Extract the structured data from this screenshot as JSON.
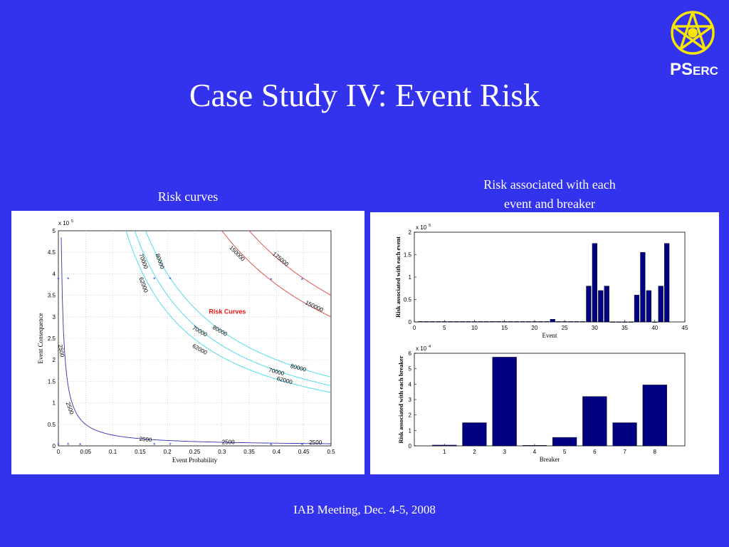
{
  "slide": {
    "title": "Case Study IV: Event Risk",
    "footer": "IAB Meeting, Dec. 4-5, 2008",
    "logo": {
      "icon": "star-wheel-icon",
      "text_big": "PS",
      "text_small": "ERC",
      "color": "#f6e600"
    },
    "background_color": "#3333ee",
    "left_caption": "Risk curves",
    "right_caption_line1": "Risk associated with each",
    "right_caption_line2": "event and breaker"
  },
  "chart_data": [
    {
      "type": "line",
      "title": "Risk Curves",
      "xlabel": "Event Probability",
      "ylabel": "Event Consequence",
      "y_exponent_label": "x 10",
      "y_exponent": "5",
      "xlim": [
        0,
        0.5
      ],
      "ylim": [
        0,
        5
      ],
      "grid": true,
      "xticks": [
        "0",
        "0.05",
        "0.1",
        "0.15",
        "0.2",
        "0.25",
        "0.3",
        "0.35",
        "0.4",
        "0.45",
        "0.5"
      ],
      "yticks": [
        "0",
        "0.5",
        "1",
        "1.5",
        "2",
        "2.5",
        "3",
        "3.5",
        "4",
        "4.5",
        "5"
      ],
      "series": [
        {
          "risk": 2500,
          "color": "#3030b0",
          "labels": [
            "2500",
            "2500",
            "2500",
            "2500",
            "2500"
          ]
        },
        {
          "risk": 62000,
          "color": "#40d8e8",
          "labels": [
            "62000",
            "62000",
            "62000"
          ]
        },
        {
          "risk": 70000,
          "color": "#40d8e8",
          "labels": [
            "70000",
            "70000",
            "70000"
          ]
        },
        {
          "risk": 80000,
          "color": "#40d8e8",
          "labels": [
            "80000",
            "80000",
            "80000"
          ]
        },
        {
          "risk": 150000,
          "color": "#e04040",
          "labels": [
            "150000",
            "150000"
          ]
        },
        {
          "risk": 175000,
          "color": "#e04040",
          "labels": [
            "175000"
          ]
        }
      ],
      "points": [
        {
          "x": 0.0,
          "y": 3.87
        },
        {
          "x": 0.018,
          "y": 3.87
        },
        {
          "x": 0.176,
          "y": 3.87
        },
        {
          "x": 0.205,
          "y": 3.87
        },
        {
          "x": 0.39,
          "y": 3.85
        },
        {
          "x": 0.447,
          "y": 3.85
        },
        {
          "x": 0.0,
          "y": 0.02
        },
        {
          "x": 0.018,
          "y": 0.02
        },
        {
          "x": 0.04,
          "y": 0.01
        },
        {
          "x": 0.176,
          "y": 0.02
        },
        {
          "x": 0.205,
          "y": 0.02
        },
        {
          "x": 0.39,
          "y": 0.01
        },
        {
          "x": 0.447,
          "y": 0.01
        }
      ],
      "annotation": "Risk Curves",
      "annotation_color": "#ee1111"
    },
    {
      "type": "bar",
      "xlabel": "Event",
      "ylabel": "Risk associated with each event",
      "y_exponent_label": "x 10",
      "y_exponent": "5",
      "xlim": [
        0,
        45
      ],
      "ylim": [
        0,
        2
      ],
      "xticks": [
        "0",
        "5",
        "10",
        "15",
        "20",
        "25",
        "30",
        "35",
        "40",
        "45"
      ],
      "yticks": [
        "0",
        "0.5",
        "1",
        "1.5",
        "2"
      ],
      "color": "#000080",
      "x": [
        1,
        2,
        3,
        4,
        5,
        6,
        7,
        8,
        9,
        10,
        11,
        12,
        13,
        14,
        15,
        16,
        17,
        18,
        19,
        20,
        21,
        22,
        23,
        24,
        25,
        26,
        27,
        28,
        29,
        30,
        31,
        32,
        33,
        34,
        35,
        36,
        37,
        38,
        39,
        40,
        41,
        42
      ],
      "values": [
        0.01,
        0.01,
        0.01,
        0.01,
        0.01,
        0.01,
        0.01,
        0.01,
        0.01,
        0.01,
        0.01,
        0.01,
        0.01,
        0.01,
        0.01,
        0.01,
        0.01,
        0.01,
        0.01,
        0.01,
        0.01,
        0.01,
        0.06,
        0.01,
        0.01,
        0.01,
        0.01,
        0.01,
        0.8,
        1.75,
        0.7,
        0.8,
        0,
        0,
        0,
        0,
        0.6,
        1.55,
        0.7,
        0,
        0.8,
        1.75
      ]
    },
    {
      "type": "bar",
      "xlabel": "Breaker",
      "ylabel": "Risk associated with each breaker",
      "y_exponent_label": "x 10",
      "y_exponent": "4",
      "ylim": [
        0,
        6
      ],
      "yticks": [
        "0",
        "1",
        "2",
        "3",
        "4",
        "5",
        "6"
      ],
      "categories": [
        "1",
        "2",
        "3",
        "4",
        "5",
        "6",
        "7",
        "8"
      ],
      "color": "#000080",
      "values": [
        0.05,
        1.5,
        5.75,
        0.03,
        0.55,
        3.2,
        1.5,
        3.95
      ]
    }
  ]
}
